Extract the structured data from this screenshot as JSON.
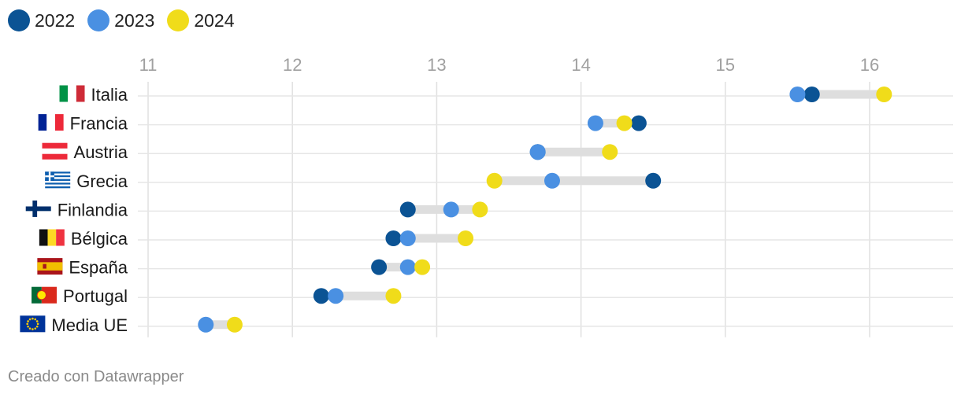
{
  "footer": "Creado con Datawrapper",
  "chart_data": {
    "type": "dot-range",
    "x_ticks": [
      11,
      12,
      13,
      14,
      15,
      16
    ],
    "xlim": [
      11,
      16.6
    ],
    "grid": true,
    "legend_position": "top-left",
    "series": [
      {
        "name": "2022",
        "color": "#0b5394"
      },
      {
        "name": "2023",
        "color": "#4a90e2"
      },
      {
        "name": "2024",
        "color": "#f0dc1a"
      }
    ],
    "rows": [
      {
        "label": "Italia",
        "flag": "italy-flag",
        "values": {
          "2022": 15.6,
          "2023": 15.5,
          "2024": 16.1
        }
      },
      {
        "label": "Francia",
        "flag": "france-flag",
        "values": {
          "2022": 14.4,
          "2023": 14.1,
          "2024": 14.3
        }
      },
      {
        "label": "Austria",
        "flag": "austria-flag",
        "values": {
          "2022": 13.7,
          "2023": 13.7,
          "2024": 14.2
        }
      },
      {
        "label": "Grecia",
        "flag": "greece-flag",
        "values": {
          "2022": 14.5,
          "2023": 13.8,
          "2024": 13.4
        }
      },
      {
        "label": "Finlandia",
        "flag": "finland-flag",
        "values": {
          "2022": 12.8,
          "2023": 13.1,
          "2024": 13.3
        }
      },
      {
        "label": "Bélgica",
        "flag": "belgium-flag",
        "values": {
          "2022": 12.7,
          "2023": 12.8,
          "2024": 13.2
        }
      },
      {
        "label": "España",
        "flag": "spain-flag",
        "values": {
          "2022": 12.6,
          "2023": 12.8,
          "2024": 12.9
        }
      },
      {
        "label": "Portugal",
        "flag": "portugal-flag",
        "values": {
          "2022": 12.2,
          "2023": 12.3,
          "2024": 12.7
        }
      },
      {
        "label": "Media UE",
        "flag": "eu-flag",
        "values": {
          "2023": 11.4,
          "2024": 11.6
        }
      }
    ]
  }
}
